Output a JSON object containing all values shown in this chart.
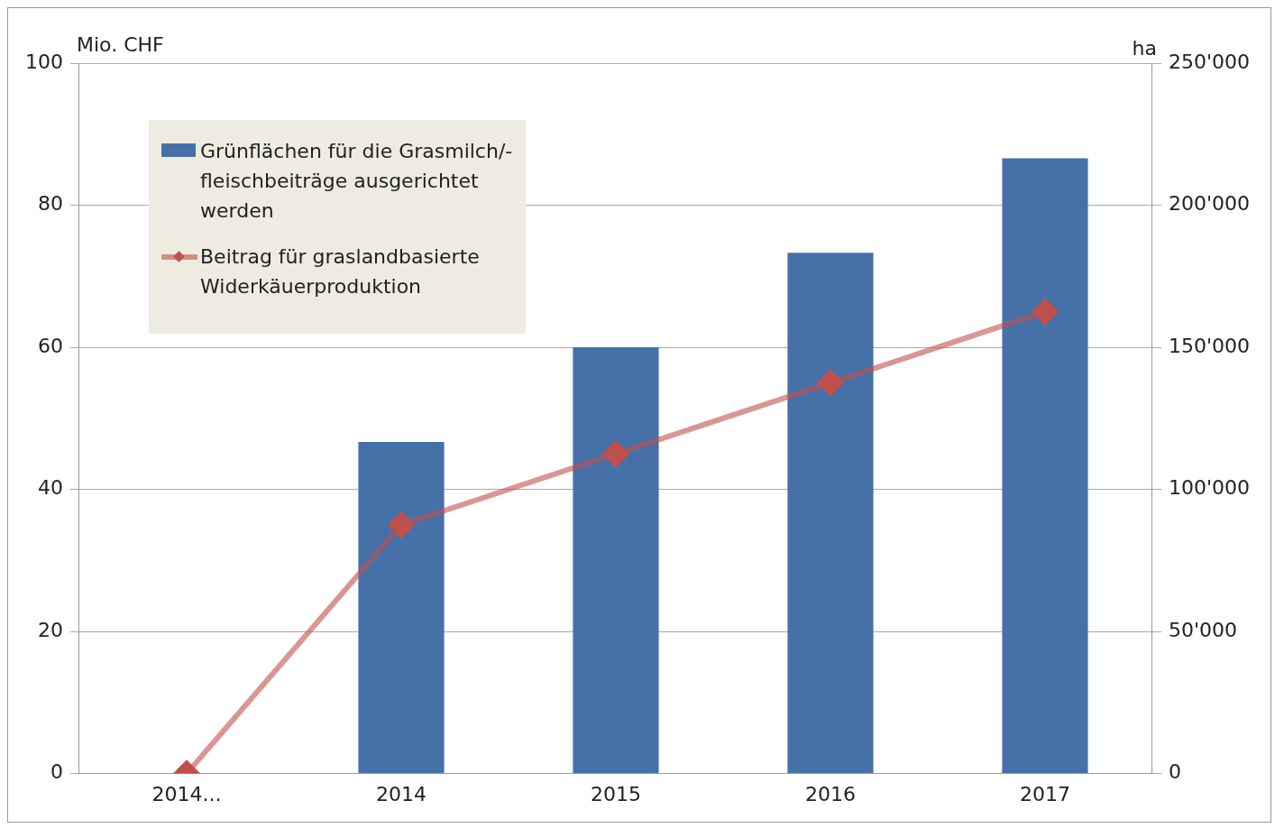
{
  "chart_data": {
    "type": "bar",
    "ylabel": "Mio. CHF",
    "y2label": "ha",
    "categories": [
      "2014...",
      "2014",
      "2015",
      "2016",
      "2017"
    ],
    "series": [
      {
        "name": "Grünflächen für die Grasmilch/-fleischbeiträge ausgerichtet werden",
        "axis": "y2",
        "color": "#4571a8",
        "values": [
          null,
          116700,
          150000,
          183300,
          216500
        ]
      },
      {
        "name": "Beitrag für graslandbasierte Widerkäuerproduktion",
        "type": "line",
        "axis": "y",
        "color": "#c0504d",
        "values": [
          0,
          35,
          45,
          55,
          65
        ]
      }
    ],
    "ylim": [
      0,
      100
    ],
    "yticks": [
      0,
      20,
      40,
      60,
      80,
      100
    ],
    "y2lim": [
      0,
      250000
    ],
    "y2ticks": [
      {
        "value": 0,
        "label": "0"
      },
      {
        "value": 50000,
        "label": "50'000"
      },
      {
        "value": 100000,
        "label": "100'000"
      },
      {
        "value": 150000,
        "label": "150'000"
      },
      {
        "value": 200000,
        "label": "200'000"
      },
      {
        "value": 250000,
        "label": "250'000"
      }
    ],
    "grid": "y",
    "legend": "top left",
    "marker": "diamond"
  }
}
